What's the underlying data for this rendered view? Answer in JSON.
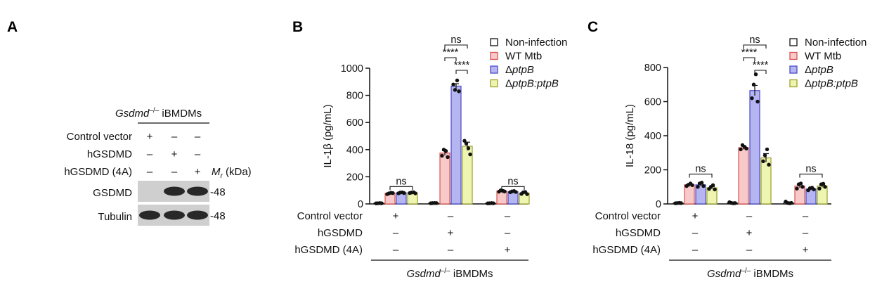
{
  "panels": {
    "a": "A",
    "b": "B",
    "c": "C"
  },
  "panel_a": {
    "group_label_italic": "Gsdmd",
    "group_label_sup": "–/–",
    "group_label_rest": " iBMDMs",
    "rows": [
      {
        "label": "Control vector",
        "marks": [
          "+",
          "–",
          "–"
        ]
      },
      {
        "label": "hGSDMD",
        "marks": [
          "–",
          "+",
          "–"
        ]
      },
      {
        "label": "hGSDMD (4A)",
        "marks": [
          "–",
          "–",
          "+"
        ]
      }
    ],
    "mr_label_italic": "M",
    "mr_label_sub": "r",
    "mr_label_rest": " (kDa)",
    "blots": [
      {
        "label": "GSDMD",
        "marker": "-48",
        "band_intensity": [
          0,
          1,
          1
        ]
      },
      {
        "label": "Tubulin",
        "marker": "-48",
        "band_intensity": [
          1,
          1,
          1
        ]
      }
    ]
  },
  "legend": [
    {
      "label": "Non-infection",
      "italic": "",
      "fill": "#ffffff",
      "stroke": "#111111"
    },
    {
      "label": "WT Mtb",
      "italic": "",
      "fill": "#f7c9c9",
      "stroke": "#d9534f"
    },
    {
      "label": "Δ",
      "italic": "ptpB",
      "fill": "#b5b5f2",
      "stroke": "#4a4ac8"
    },
    {
      "label": "Δ",
      "italic": "ptpB:ptpB",
      "fill": "#eef5b0",
      "stroke": "#9aa02a"
    }
  ],
  "treatment_table": {
    "rows": [
      {
        "label": "Control vector",
        "marks": [
          "+",
          "–",
          "–"
        ]
      },
      {
        "label": "hGSDMD",
        "marks": [
          "–",
          "+",
          "–"
        ]
      },
      {
        "label": "hGSDMD (4A)",
        "marks": [
          "–",
          "–",
          "+"
        ]
      }
    ],
    "footer_italic": "Gsdmd",
    "footer_sup": "–/–",
    "footer_rest": " iBMDMs"
  },
  "chart_data": [
    {
      "panel": "B",
      "type": "bar",
      "ylabel": "IL-1β (pg/mL)",
      "ylim": [
        0,
        1000
      ],
      "yticks": [
        0,
        200,
        400,
        600,
        800,
        1000
      ],
      "groups": [
        "Control vector",
        "hGSDMD",
        "hGSDMD (4A)"
      ],
      "series": [
        {
          "name": "Non-infection",
          "values": [
            5,
            6,
            5
          ],
          "errors": [
            1,
            1,
            1
          ],
          "points": [
            [
              4,
              5,
              6,
              5
            ],
            [
              5,
              6,
              7,
              6
            ],
            [
              4,
              5,
              6,
              5
            ]
          ]
        },
        {
          "name": "WT Mtb",
          "values": [
            78,
            375,
            95
          ],
          "errors": [
            4,
            18,
            5
          ],
          "points": [
            [
              72,
              78,
              82,
              80
            ],
            [
              355,
              400,
              390,
              345
            ],
            [
              90,
              100,
              96,
              92
            ]
          ]
        },
        {
          "name": "ΔptpB",
          "values": [
            82,
            868,
            90
          ],
          "errors": [
            4,
            18,
            4
          ],
          "points": [
            [
              78,
              84,
              85,
              80
            ],
            [
              880,
              840,
              910,
              830
            ],
            [
              86,
              92,
              95,
              88
            ]
          ]
        },
        {
          "name": "ΔptpB:ptpB",
          "values": [
            82,
            425,
            80
          ],
          "errors": [
            3,
            30,
            6
          ],
          "points": [
            [
              80,
              84,
              86,
              78
            ],
            [
              465,
              445,
              410,
              365
            ],
            [
              74,
              85,
              88,
              72
            ]
          ]
        }
      ],
      "annotations": [
        {
          "text": "ns",
          "group": 0,
          "from": 1,
          "to": 3,
          "level": 0
        },
        {
          "text": "ns",
          "group": 1,
          "from": 1,
          "to": 3,
          "level": 3
        },
        {
          "text": "****",
          "group": 1,
          "from": 1,
          "to": 2,
          "level": 2
        },
        {
          "text": "****",
          "group": 1,
          "from": 2,
          "to": 3,
          "level": 1
        },
        {
          "text": "ns",
          "group": 2,
          "from": 1,
          "to": 3,
          "level": 0
        }
      ]
    },
    {
      "panel": "C",
      "type": "bar",
      "ylabel": "IL-18 (pg/mL)",
      "ylim": [
        0,
        800
      ],
      "yticks": [
        0,
        200,
        400,
        600,
        800
      ],
      "groups": [
        "Control vector",
        "hGSDMD",
        "hGSDMD (4A)"
      ],
      "series": [
        {
          "name": "Non-infection",
          "values": [
            5,
            6,
            6
          ],
          "errors": [
            1,
            2,
            2
          ],
          "points": [
            [
              4,
              5,
              6,
              5
            ],
            [
              10,
              6,
              4,
              5
            ],
            [
              14,
              6,
              4,
              6
            ]
          ]
        },
        {
          "name": "WT Mtb",
          "values": [
            112,
            330,
            105
          ],
          "errors": [
            5,
            10,
            10
          ],
          "points": [
            [
              105,
              112,
              120,
              110
            ],
            [
              320,
              345,
              335,
              325
            ],
            [
              90,
              115,
              120,
              100
            ]
          ]
        },
        {
          "name": "ΔptpB",
          "values": [
            112,
            665,
            88
          ],
          "errors": [
            6,
            30,
            6
          ],
          "points": [
            [
              100,
              120,
              125,
              105
            ],
            [
              620,
              700,
              760,
              600
            ],
            [
              80,
              92,
              95,
              85
            ]
          ]
        },
        {
          "name": "ΔptpB:ptpB",
          "values": [
            95,
            270,
            105
          ],
          "errors": [
            7,
            25,
            8
          ],
          "points": [
            [
              88,
              100,
              110,
              85
            ],
            [
              250,
              285,
              320,
              230
            ],
            [
              90,
              115,
              118,
              100
            ]
          ]
        }
      ],
      "annotations": [
        {
          "text": "ns",
          "group": 0,
          "from": 1,
          "to": 3,
          "level": 0
        },
        {
          "text": "ns",
          "group": 1,
          "from": 1,
          "to": 3,
          "level": 3
        },
        {
          "text": "****",
          "group": 1,
          "from": 1,
          "to": 2,
          "level": 2
        },
        {
          "text": "****",
          "group": 1,
          "from": 2,
          "to": 3,
          "level": 1
        },
        {
          "text": "ns",
          "group": 2,
          "from": 1,
          "to": 3,
          "level": 0
        }
      ]
    }
  ]
}
